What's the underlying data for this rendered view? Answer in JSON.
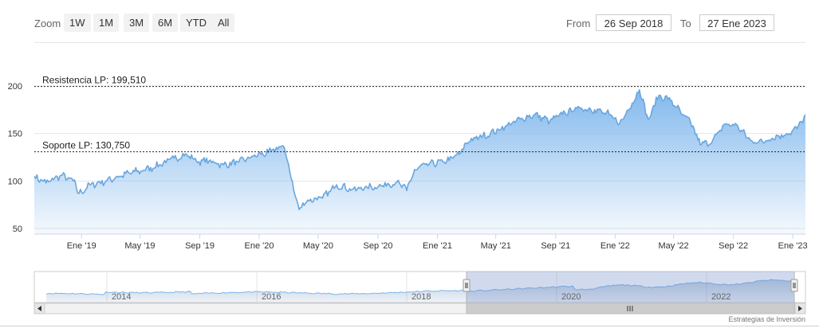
{
  "range_selector": {
    "zoom_label": "Zoom",
    "buttons": [
      "1W",
      "1M",
      "3M",
      "6M",
      "YTD",
      "All"
    ],
    "from_label": "From",
    "from_value": "26 Sep 2018",
    "to_label": "To",
    "to_value": "27 Ene 2023"
  },
  "chart_data": {
    "type": "area",
    "x_start": "2018-09-26",
    "x_end": "2023-01-27",
    "x_tick_labels": [
      "Ene '19",
      "May '19",
      "Sep '19",
      "Ene '20",
      "May '20",
      "Sep '20",
      "Ene '21",
      "May '21",
      "Sep '21",
      "Ene '22",
      "May '22",
      "Sep '22",
      "Ene '23"
    ],
    "y_ticks": [
      50,
      100,
      150,
      200
    ],
    "ylim": [
      50,
      200
    ],
    "grid": true,
    "series": [
      {
        "points": [
          [
            "2018-09-26",
            105
          ],
          [
            "2018-10-20",
            98
          ],
          [
            "2018-11-20",
            106
          ],
          [
            "2018-12-15",
            100
          ],
          [
            "2018-12-27",
            87
          ],
          [
            "2019-01-20",
            96
          ],
          [
            "2019-02-20",
            100
          ],
          [
            "2019-03-20",
            105
          ],
          [
            "2019-04-20",
            110
          ],
          [
            "2019-05-10",
            111
          ],
          [
            "2019-06-10",
            117
          ],
          [
            "2019-07-10",
            124
          ],
          [
            "2019-08-05",
            128
          ],
          [
            "2019-08-25",
            121
          ],
          [
            "2019-09-20",
            121
          ],
          [
            "2019-10-20",
            117
          ],
          [
            "2019-11-20",
            120
          ],
          [
            "2019-12-20",
            126
          ],
          [
            "2020-01-20",
            130
          ],
          [
            "2020-02-19",
            137
          ],
          [
            "2020-03-01",
            118
          ],
          [
            "2020-03-12",
            90
          ],
          [
            "2020-03-23",
            70
          ],
          [
            "2020-04-10",
            80
          ],
          [
            "2020-05-10",
            82
          ],
          [
            "2020-06-08",
            96
          ],
          [
            "2020-07-10",
            91
          ],
          [
            "2020-08-10",
            93
          ],
          [
            "2020-09-10",
            95
          ],
          [
            "2020-10-10",
            99
          ],
          [
            "2020-10-30",
            90
          ],
          [
            "2020-11-15",
            112
          ],
          [
            "2020-12-15",
            118
          ],
          [
            "2021-01-15",
            120
          ],
          [
            "2021-02-15",
            128
          ],
          [
            "2021-03-01",
            140
          ],
          [
            "2021-03-20",
            145
          ],
          [
            "2021-04-20",
            150
          ],
          [
            "2021-05-20",
            157
          ],
          [
            "2021-06-20",
            165
          ],
          [
            "2021-07-20",
            170
          ],
          [
            "2021-08-20",
            163
          ],
          [
            "2021-09-20",
            172
          ],
          [
            "2021-10-20",
            177
          ],
          [
            "2021-11-20",
            175
          ],
          [
            "2021-12-20",
            170
          ],
          [
            "2022-01-10",
            160
          ],
          [
            "2022-02-05",
            182
          ],
          [
            "2022-02-20",
            196
          ],
          [
            "2022-03-10",
            165
          ],
          [
            "2022-04-01",
            190
          ],
          [
            "2022-04-25",
            185
          ],
          [
            "2022-05-20",
            170
          ],
          [
            "2022-06-10",
            158
          ],
          [
            "2022-06-25",
            138
          ],
          [
            "2022-07-20",
            142
          ],
          [
            "2022-08-15",
            160
          ],
          [
            "2022-09-10",
            158
          ],
          [
            "2022-09-30",
            145
          ],
          [
            "2022-10-20",
            140
          ],
          [
            "2022-11-20",
            145
          ],
          [
            "2022-12-20",
            150
          ],
          [
            "2023-01-10",
            155
          ],
          [
            "2023-01-27",
            170
          ]
        ]
      }
    ],
    "plot_lines": [
      {
        "label": "Resistencia LP: 199,510",
        "value": 199.51
      },
      {
        "label": "Soporte LP: 130,750",
        "value": 130.75
      }
    ],
    "navigator": {
      "x_tick_labels": [
        "2014",
        "2016",
        "2018",
        "2020",
        "2022"
      ],
      "selected_range": [
        "2018-09-26",
        "2023-01-27"
      ]
    }
  },
  "credit": "Estrategias de Inversión"
}
